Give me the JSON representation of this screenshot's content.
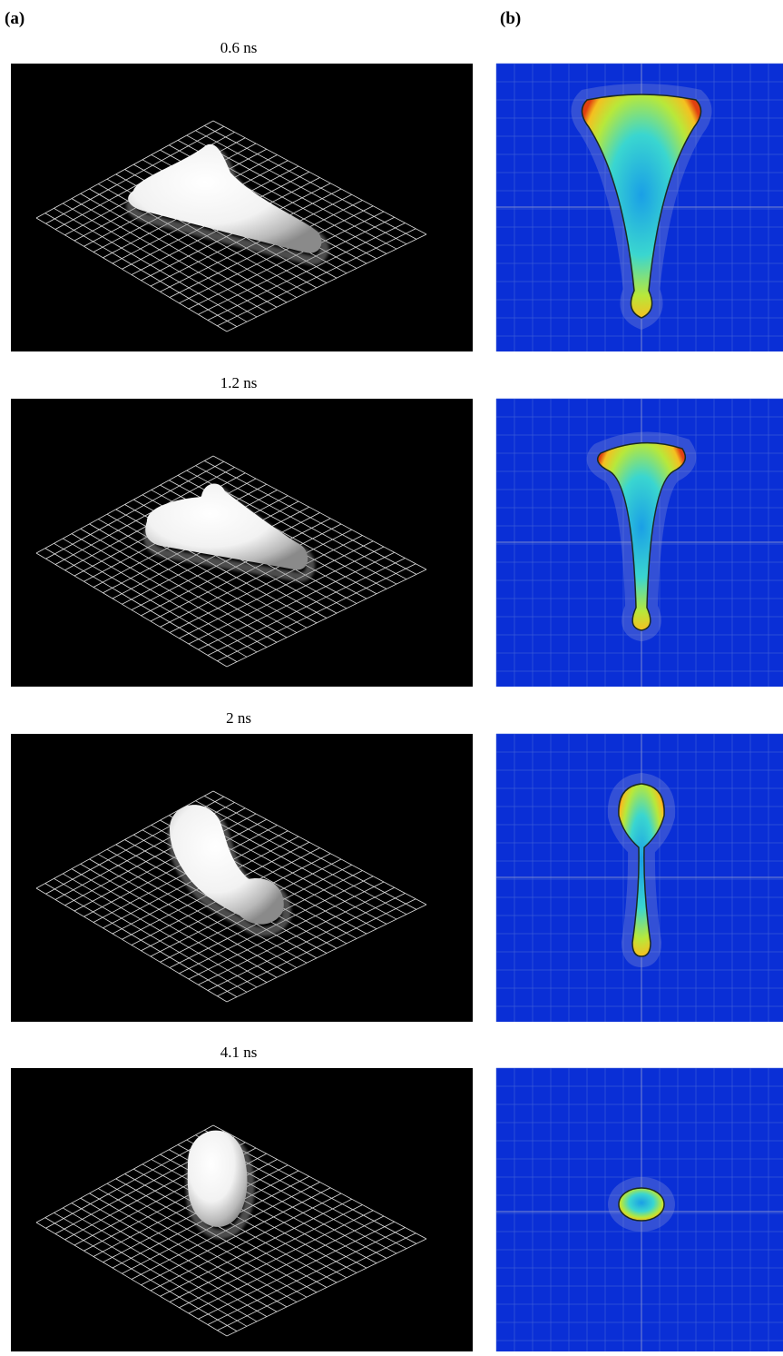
{
  "labels": {
    "a": "(a)",
    "b": "(b)"
  },
  "panels": [
    {
      "time": "0.6 ns"
    },
    {
      "time": "1.2 ns"
    },
    {
      "time": "2 ns"
    },
    {
      "time": "4.1 ns"
    }
  ]
}
